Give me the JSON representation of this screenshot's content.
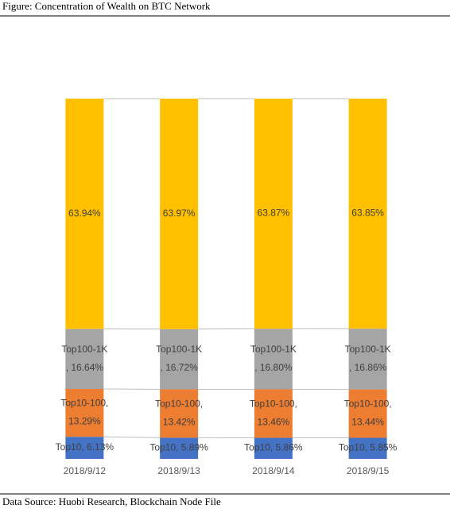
{
  "chart_data": {
    "type": "stacked_bar",
    "title": "Figure:   Concentration of Wealth on BTC Network",
    "source": "Data Source: Huobi Research, Blockchain Node File",
    "categories": [
      "2018/9/12",
      "2018/9/13",
      "2018/9/14",
      "2018/9/15"
    ],
    "series": [
      {
        "name": "Top10",
        "color": "#4472c4",
        "values": [
          6.13,
          5.89,
          5.86,
          5.85
        ],
        "value_labels": [
          "Top10, 6.13%",
          "Top10, 5.89%",
          "Top10, 5.86%",
          "Top10, 5.85%"
        ]
      },
      {
        "name": "Top10-100",
        "color": "#ed7d31",
        "values": [
          13.29,
          13.42,
          13.46,
          13.44
        ],
        "value_labels": [
          "Top10-100,\n13.29%",
          "Top10-100,\n13.42%",
          "Top10-100,\n13.46%",
          "Top10-100,\n13.44%"
        ]
      },
      {
        "name": "Top100-1K",
        "color": "#a5a5a5",
        "values": [
          16.64,
          16.72,
          16.8,
          16.86
        ],
        "value_labels": [
          "Top100-1K\n, 16.64%",
          "Top100-1K\n, 16.72%",
          "Top100-1K\n, 16.80%",
          "Top100-1K\n, 16.86%"
        ]
      },
      {
        "color": "#ffc000",
        "values": [
          63.94,
          63.97,
          63.87,
          63.85
        ],
        "value_labels": [
          "63.94%",
          "63.97%",
          "63.87%",
          "63.85%"
        ]
      }
    ]
  }
}
